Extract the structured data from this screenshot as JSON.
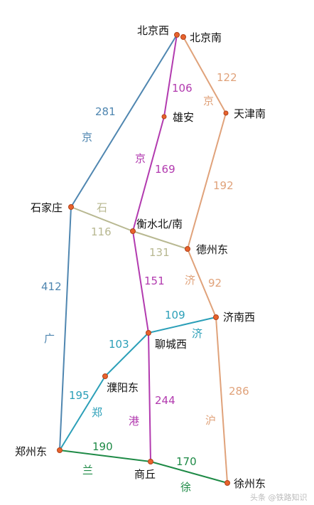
{
  "colors": {
    "jingguang": "#4f86b0",
    "jinggang": "#b23aaf",
    "jinghu": "#e0a27a",
    "shiji": "#b8b891",
    "zhengji": "#2b9fb8",
    "xulan": "#1e8a46"
  },
  "stations": {
    "beijingxi": "北京西",
    "beijingnan": "北京南",
    "tianjinnan": "天津南",
    "xiongan": "雄安",
    "shijiazhuang": "石家庄",
    "hengshui": "衡水北/南",
    "dezhoudong": "德州东",
    "jinanxi": "济南西",
    "liaocheng": "聊城西",
    "puyangdong": "濮阳东",
    "zhengzhoudong": "郑州东",
    "shangqiu": "商丘",
    "xuzhoudong": "徐州东"
  },
  "distances": {
    "beijingxi_shijiazhuang": "281",
    "shijiazhuang_zhengzhoudong": "412",
    "beijingxi_xiongan": "106",
    "xiongan_hengshui": "169",
    "hengshui_liaocheng": "151",
    "liaocheng_shangqiu": "244",
    "beijingnan_tianjinnan": "122",
    "tianjinnan_dezhoudong": "192",
    "dezhoudong_jinanxi": "92",
    "jinanxi_xuzhoudong": "286",
    "shijiazhuang_hengshui": "116",
    "hengshui_dezhoudong": "131",
    "jinanxi_liaocheng": "109",
    "liaocheng_puyangdong": "103",
    "puyangdong_zhengzhoudong": "195",
    "zhengzhoudong_shangqiu": "190",
    "shangqiu_xuzhoudong": "170"
  },
  "line_chars": {
    "jing_guang_1": "京",
    "jing_guang_2": "广",
    "jing_gang_1": "京",
    "jing_gang_2": "港",
    "jing_hu_1": "京",
    "jing_hu_2": "沪",
    "shi_ji_1": "石",
    "shi_ji_2": "济",
    "zheng_ji_1": "济",
    "zheng_ji_2": "郑",
    "xu_lan_1": "兰",
    "xu_lan_2": "徐"
  },
  "watermark": "头条 @铁路知识"
}
